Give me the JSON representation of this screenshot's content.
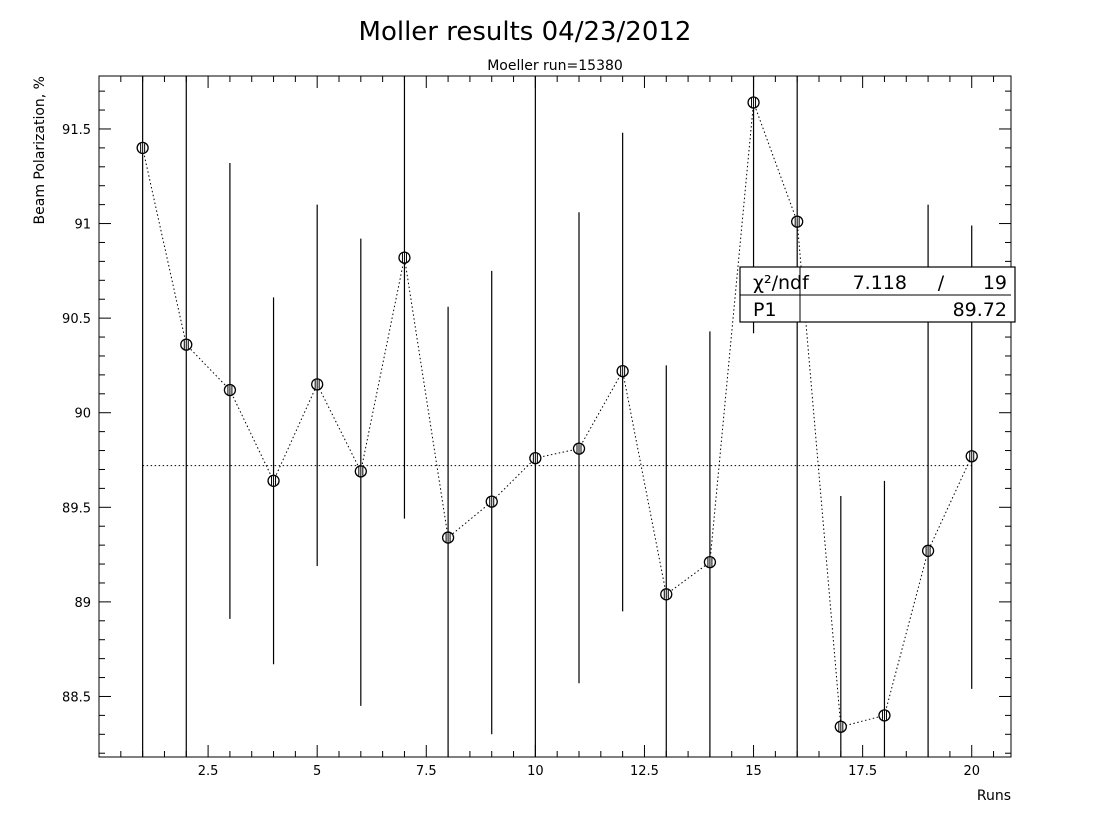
{
  "chart_data": {
    "type": "scatter",
    "title": "Moller results 04/23/2012",
    "subtitle": "Moeller run=15380",
    "xlabel": "Runs",
    "ylabel": "Beam Polarization, %",
    "xlim": [
      0.0,
      20.9
    ],
    "ylim": [
      88.18,
      91.78
    ],
    "x_ticks": [
      2.5,
      5,
      7.5,
      10,
      12.5,
      15,
      17.5,
      20
    ],
    "x_tick_labels": [
      "2.5",
      "5",
      "7.5",
      "10",
      "12.5",
      "15",
      "17.5",
      "20"
    ],
    "y_ticks": [
      88.5,
      89,
      89.5,
      90,
      90.5,
      91,
      91.5
    ],
    "y_tick_labels": [
      "88.5",
      "89",
      "89.5",
      "90",
      "90.5",
      "91",
      "91.5"
    ],
    "grid": false,
    "series": [
      {
        "x": [
          1,
          2,
          3,
          4,
          5,
          6,
          7,
          8,
          9,
          10,
          11,
          12,
          13,
          14,
          15,
          16,
          17,
          18,
          19,
          20
        ],
        "y": [
          91.4,
          90.36,
          90.12,
          89.64,
          90.15,
          89.69,
          90.82,
          89.34,
          89.53,
          89.76,
          89.81,
          90.22,
          89.04,
          89.21,
          91.64,
          91.01,
          88.34,
          88.4,
          89.27,
          89.77
        ],
        "y_err_low": [
          88.18,
          88.18,
          88.91,
          88.67,
          89.19,
          88.45,
          89.44,
          88.18,
          88.3,
          88.18,
          88.57,
          88.95,
          88.18,
          88.18,
          90.42,
          88.18,
          88.18,
          88.18,
          88.18,
          88.54
        ],
        "y_err_high": [
          91.78,
          91.78,
          91.32,
          90.61,
          91.1,
          90.92,
          91.78,
          90.56,
          90.75,
          91.78,
          91.06,
          91.48,
          90.25,
          90.43,
          91.78,
          91.78,
          89.56,
          89.64,
          91.1,
          90.99
        ]
      }
    ],
    "fit_line": {
      "y": 89.72
    },
    "stats_box": {
      "row1_label": "χ²/ndf",
      "row1_value1": "7.118",
      "row1_sep": "/",
      "row1_value2": "19",
      "row2_label": "P1",
      "row2_value": "89.72"
    }
  }
}
